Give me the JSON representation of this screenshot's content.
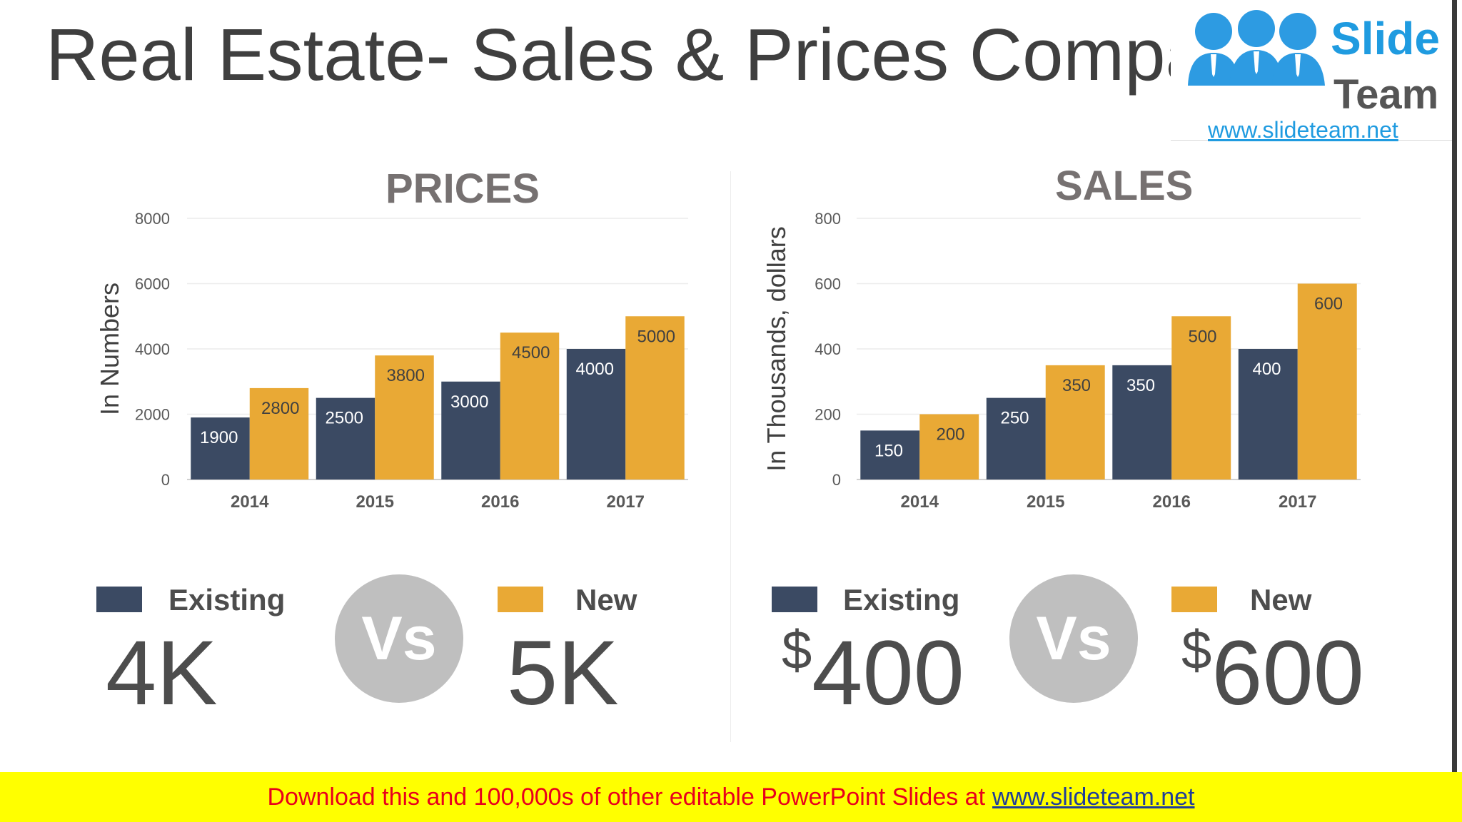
{
  "title": "Real Estate- Sales & Prices Comparison",
  "logo": {
    "word1": "Slide",
    "word2": "Team",
    "url": "www.slideteam.net"
  },
  "colors": {
    "existing": "#3b4a63",
    "new": "#e9a935",
    "vs_circle": "#bfbfbf",
    "footer_bg": "#ffff00",
    "footer_text": "#e8001c"
  },
  "chart_data": [
    {
      "type": "bar",
      "title": "PRICES",
      "categories": [
        "2014",
        "2015",
        "2016",
        "2017"
      ],
      "series": [
        {
          "name": "Existing",
          "values": [
            1900,
            2500,
            3000,
            4000
          ]
        },
        {
          "name": "New",
          "values": [
            2800,
            3800,
            4500,
            5000
          ]
        }
      ],
      "xlabel": "",
      "ylabel": "In Numbers",
      "ylim": [
        0,
        8000
      ],
      "yticks": [
        "0",
        "2000",
        "4000",
        "6000",
        "8000"
      ],
      "grid": true
    },
    {
      "type": "bar",
      "title": "SALES",
      "categories": [
        "2014",
        "2015",
        "2016",
        "2017"
      ],
      "series": [
        {
          "name": "Existing",
          "values": [
            150,
            250,
            350,
            400
          ]
        },
        {
          "name": "New",
          "values": [
            200,
            350,
            500,
            600
          ]
        }
      ],
      "xlabel": "",
      "ylabel": "In Thousands, dollars",
      "ylim": [
        0,
        800
      ],
      "yticks": [
        "0",
        "200",
        "400",
        "600",
        "800"
      ],
      "grid": true
    }
  ],
  "prices_summary": {
    "existing_label": "Existing",
    "new_label": "New",
    "vs": "Vs",
    "existing_value": "4K",
    "new_value": "5K"
  },
  "sales_summary": {
    "existing_label": "Existing",
    "new_label": "New",
    "vs": "Vs",
    "currency": "$",
    "existing_value": "400",
    "new_value": "600"
  },
  "footer": {
    "text": "Download this and 100,000s of other editable PowerPoint Slides at",
    "link": "www.slideteam.net"
  }
}
